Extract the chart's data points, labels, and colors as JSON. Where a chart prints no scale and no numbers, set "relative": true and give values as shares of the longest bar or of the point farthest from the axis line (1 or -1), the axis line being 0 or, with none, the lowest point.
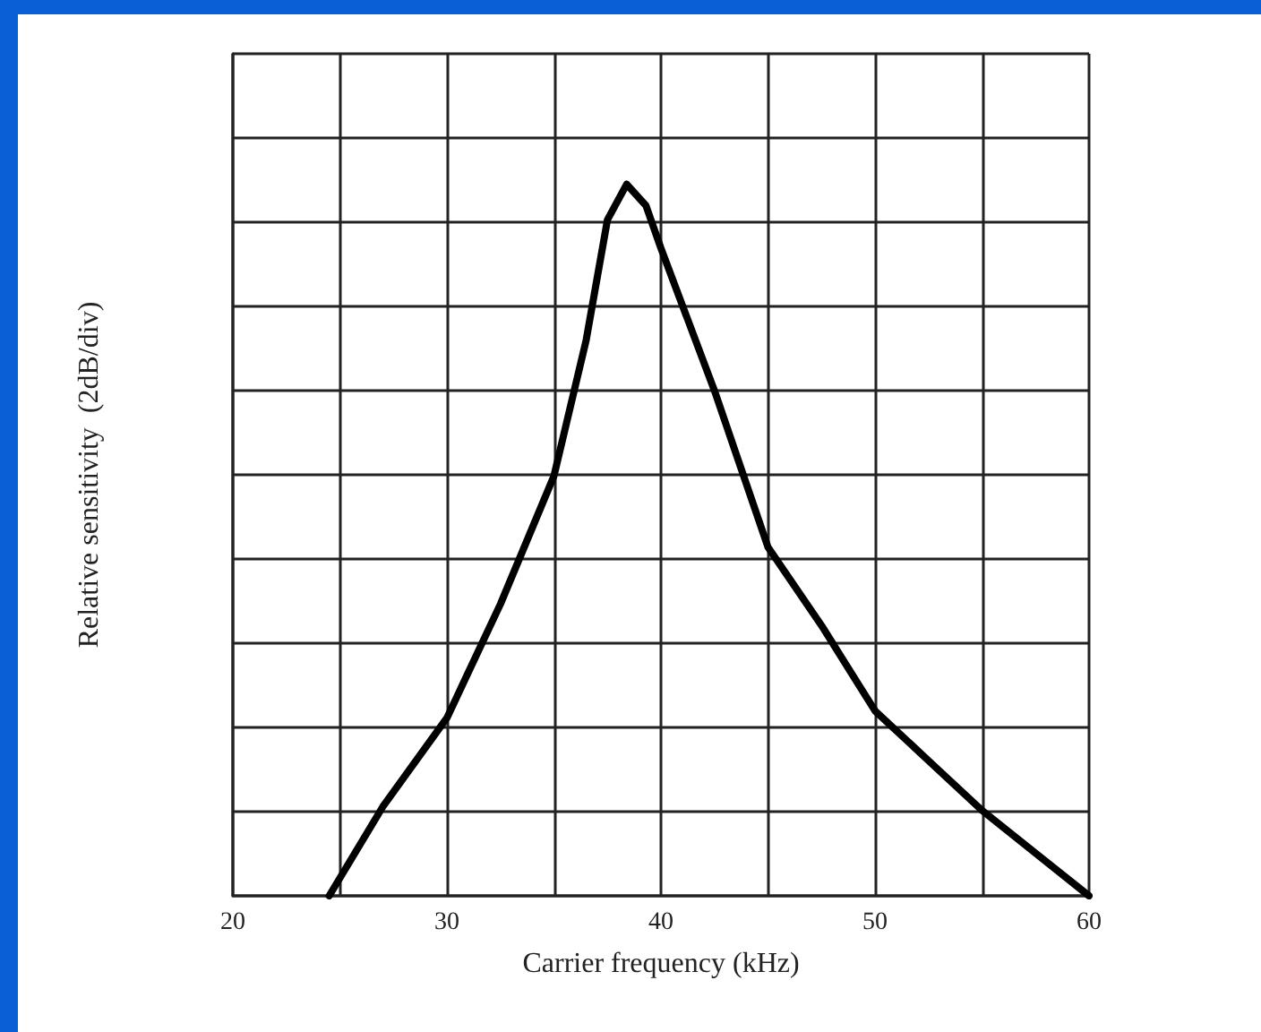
{
  "chart_data": {
    "type": "line",
    "xlabel": "Carrier frequency (kHz)",
    "ylabel": "Relative sensitivity  (2dB/div)",
    "relative": true,
    "color": "#000000",
    "grid": true,
    "marker": "none",
    "line_style": "solid",
    "x": [
      24.5,
      27,
      30,
      32.5,
      35,
      36.5,
      37.5,
      38.4,
      39.3,
      40,
      42.5,
      45,
      47.5,
      50,
      52.5,
      55,
      57.5,
      60
    ],
    "values": [
      0,
      0.125,
      0.25,
      0.41,
      0.59,
      0.78,
      0.95,
      1,
      0.97,
      0.91,
      0.71,
      0.49,
      0.38,
      0.26,
      0.19,
      0.12,
      0.06,
      0
    ],
    "xlim": [
      20,
      60
    ],
    "xticks": [
      20,
      {
        "value": 25,
        "label": null
      },
      30,
      {
        "value": 35,
        "label": null
      },
      40,
      {
        "value": 45,
        "label": null
      },
      50,
      {
        "value": 55,
        "label": null
      },
      60
    ]
  }
}
